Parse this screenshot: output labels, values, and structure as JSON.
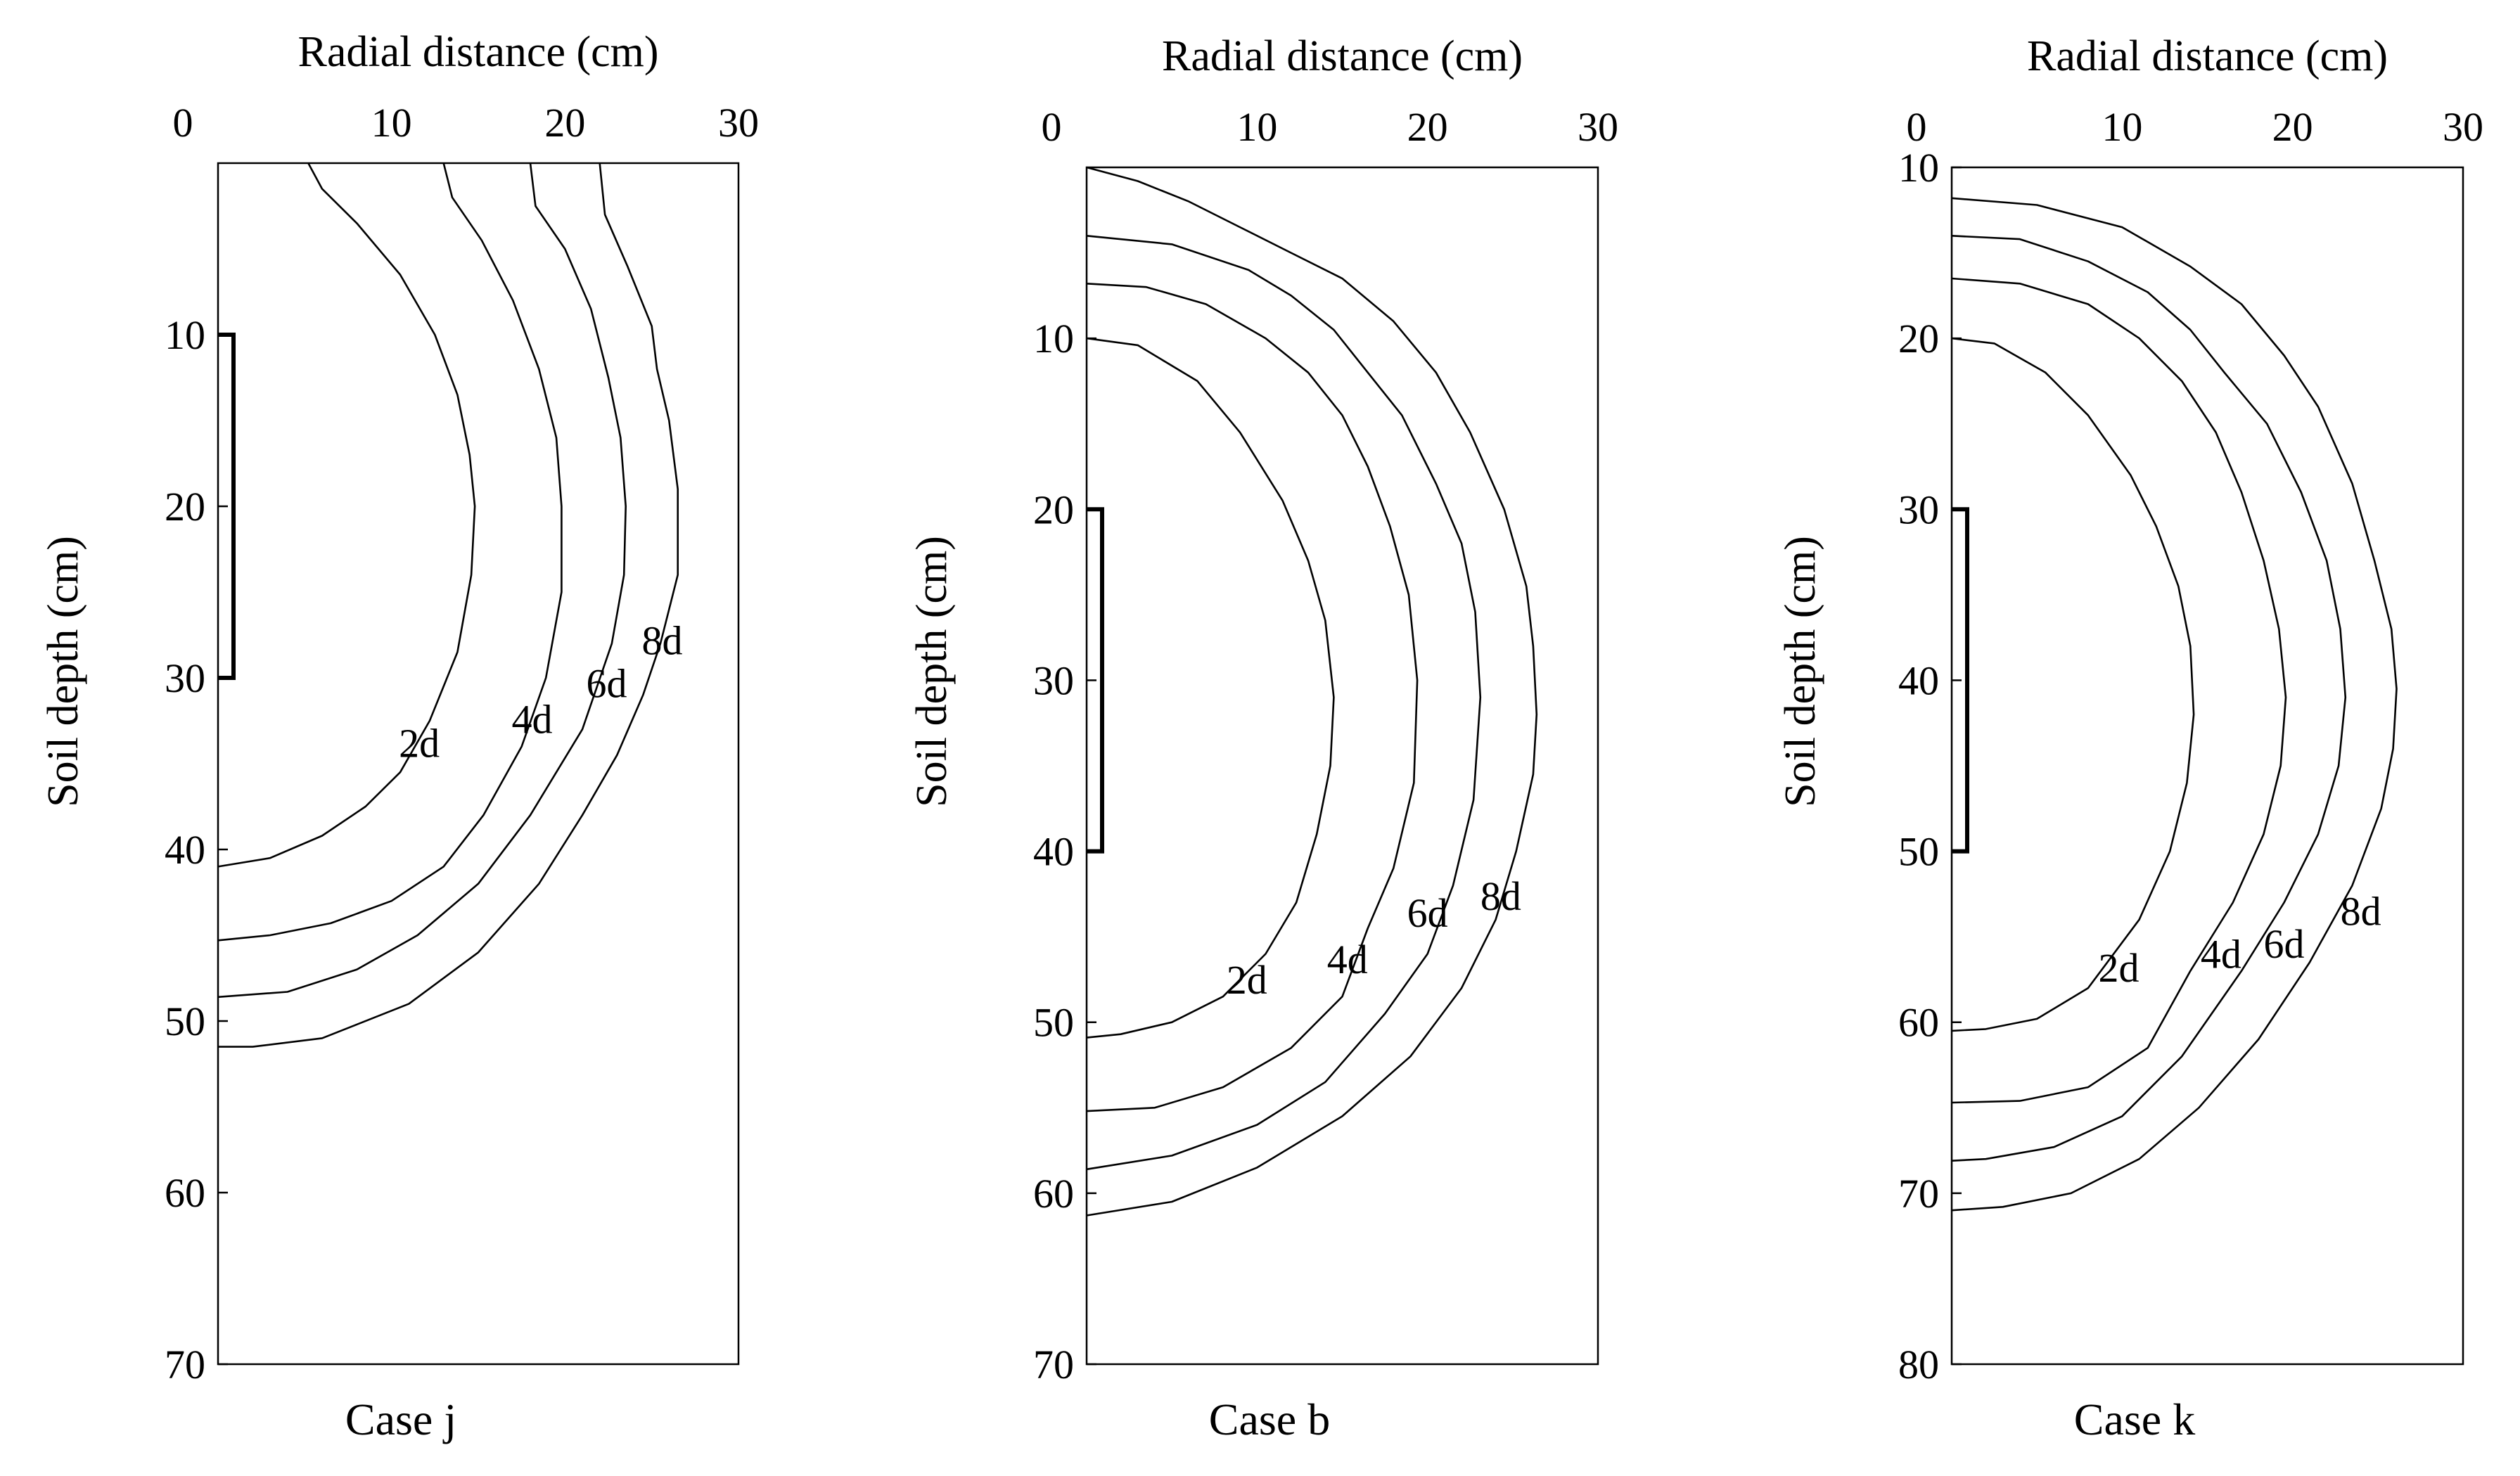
{
  "chart_data": [
    {
      "type": "contour",
      "title": "",
      "case_label": "Case j",
      "xlabel": "Radial distance (cm)",
      "ylabel": "Soil depth (cm)",
      "xlim": [
        0,
        30
      ],
      "ylim": [
        0,
        70
      ],
      "xticks": [
        0,
        10,
        20,
        30
      ],
      "yticks": [
        10,
        20,
        30,
        40,
        50,
        60,
        70
      ],
      "source": {
        "x": 0,
        "depth_top": 10,
        "depth_bottom": 30
      },
      "series": [
        {
          "name": "2d",
          "points": [
            [
              5.2,
              0
            ],
            [
              6.0,
              1.5
            ],
            [
              8.0,
              3.5
            ],
            [
              10.5,
              6.5
            ],
            [
              12.5,
              10.0
            ],
            [
              13.8,
              13.5
            ],
            [
              14.5,
              17.0
            ],
            [
              14.8,
              20.0
            ],
            [
              14.6,
              24.0
            ],
            [
              13.8,
              28.5
            ],
            [
              12.2,
              32.5
            ],
            [
              10.5,
              35.5
            ],
            [
              8.5,
              37.5
            ],
            [
              6.0,
              39.2
            ],
            [
              3.0,
              40.5
            ],
            [
              0,
              41.0
            ]
          ],
          "label_pos": [
            11.6,
            33.8
          ]
        },
        {
          "name": "4d",
          "points": [
            [
              13.0,
              0
            ],
            [
              13.5,
              2.0
            ],
            [
              15.2,
              4.5
            ],
            [
              17.0,
              8.0
            ],
            [
              18.5,
              12.0
            ],
            [
              19.5,
              16.0
            ],
            [
              19.8,
              20.0
            ],
            [
              19.8,
              25.0
            ],
            [
              18.9,
              30.0
            ],
            [
              17.5,
              34.0
            ],
            [
              15.3,
              38.0
            ],
            [
              13.0,
              41.0
            ],
            [
              10.0,
              43.0
            ],
            [
              6.5,
              44.3
            ],
            [
              3.0,
              45.0
            ],
            [
              0,
              45.3
            ]
          ],
          "label_pos": [
            18.1,
            32.4
          ]
        },
        {
          "name": "6d",
          "points": [
            [
              18.0,
              0
            ],
            [
              18.3,
              2.5
            ],
            [
              20.0,
              5.0
            ],
            [
              21.5,
              8.5
            ],
            [
              22.5,
              12.5
            ],
            [
              23.2,
              16.0
            ],
            [
              23.5,
              20.0
            ],
            [
              23.4,
              24.0
            ],
            [
              22.7,
              28.0
            ],
            [
              21.0,
              33.0
            ],
            [
              18.0,
              38.0
            ],
            [
              15.0,
              42.0
            ],
            [
              11.5,
              45.0
            ],
            [
              8.0,
              47.0
            ],
            [
              4.0,
              48.3
            ],
            [
              0,
              48.6
            ]
          ],
          "label_pos": [
            22.4,
            30.3
          ]
        },
        {
          "name": "8d",
          "points": [
            [
              22.0,
              0
            ],
            [
              22.3,
              3.0
            ],
            [
              23.6,
              6.0
            ],
            [
              25.0,
              9.5
            ],
            [
              25.3,
              12.0
            ],
            [
              26.0,
              15.0
            ],
            [
              26.5,
              19.0
            ],
            [
              26.5,
              24.0
            ],
            [
              25.5,
              28.0
            ],
            [
              24.5,
              31.0
            ],
            [
              23.0,
              34.5
            ],
            [
              21.0,
              38.0
            ],
            [
              18.5,
              42.0
            ],
            [
              15.0,
              46.0
            ],
            [
              11.0,
              49.0
            ],
            [
              6.0,
              51.0
            ],
            [
              2.0,
              51.5
            ],
            [
              0,
              51.5
            ]
          ],
          "label_pos": [
            25.6,
            27.8
          ]
        }
      ]
    },
    {
      "type": "contour",
      "title": "",
      "case_label": "Case b",
      "xlabel": "Radial distance (cm)",
      "ylabel": "Soil depth (cm)",
      "xlim": [
        0,
        30
      ],
      "ylim": [
        0,
        70
      ],
      "xticks": [
        0,
        10,
        20,
        30
      ],
      "yticks": [
        10,
        20,
        30,
        40,
        50,
        60,
        70
      ],
      "source": {
        "x": 0,
        "depth_top": 20,
        "depth_bottom": 40
      },
      "series": [
        {
          "name": "2d",
          "points": [
            [
              0,
              10.0
            ],
            [
              3.0,
              10.4
            ],
            [
              6.5,
              12.5
            ],
            [
              9.0,
              15.5
            ],
            [
              11.5,
              19.5
            ],
            [
              13.0,
              23.0
            ],
            [
              14.0,
              26.5
            ],
            [
              14.5,
              31.0
            ],
            [
              14.3,
              35.0
            ],
            [
              13.5,
              39.0
            ],
            [
              12.3,
              43.0
            ],
            [
              10.5,
              46.0
            ],
            [
              8.0,
              48.5
            ],
            [
              5.0,
              50.0
            ],
            [
              2.0,
              50.7
            ],
            [
              0,
              50.9
            ]
          ],
          "label_pos": [
            9.4,
            47.5
          ]
        },
        {
          "name": "4d",
          "points": [
            [
              0,
              6.8
            ],
            [
              3.5,
              7.0
            ],
            [
              7.0,
              8.0
            ],
            [
              10.5,
              10.0
            ],
            [
              13.0,
              12.0
            ],
            [
              15.0,
              14.5
            ],
            [
              16.5,
              17.5
            ],
            [
              17.8,
              21.0
            ],
            [
              18.9,
              25.0
            ],
            [
              19.4,
              30.0
            ],
            [
              19.2,
              36.0
            ],
            [
              18.0,
              41.0
            ],
            [
              16.5,
              44.5
            ],
            [
              15.0,
              48.5
            ],
            [
              12.0,
              51.5
            ],
            [
              8.0,
              53.8
            ],
            [
              4.0,
              55.0
            ],
            [
              0,
              55.2
            ]
          ],
          "label_pos": [
            15.3,
            46.3
          ]
        },
        {
          "name": "6d",
          "points": [
            [
              0,
              4.0
            ],
            [
              5.0,
              4.5
            ],
            [
              9.5,
              6.0
            ],
            [
              12.0,
              7.5
            ],
            [
              14.5,
              9.5
            ],
            [
              16.5,
              12.0
            ],
            [
              18.5,
              14.5
            ],
            [
              20.5,
              18.5
            ],
            [
              22.0,
              22.0
            ],
            [
              22.8,
              26.0
            ],
            [
              23.1,
              31.0
            ],
            [
              22.7,
              37.0
            ],
            [
              21.5,
              42.0
            ],
            [
              20.0,
              46.0
            ],
            [
              17.5,
              49.5
            ],
            [
              14.0,
              53.5
            ],
            [
              10.0,
              56.0
            ],
            [
              5.0,
              57.8
            ],
            [
              0,
              58.6
            ]
          ],
          "label_pos": [
            20.0,
            43.6
          ]
        },
        {
          "name": "8d",
          "points": [
            [
              0,
              0
            ],
            [
              3.0,
              0.8
            ],
            [
              6.0,
              2.0
            ],
            [
              9.0,
              3.5
            ],
            [
              12.0,
              5.0
            ],
            [
              15.0,
              6.5
            ],
            [
              18.0,
              9.0
            ],
            [
              20.5,
              12.0
            ],
            [
              22.5,
              15.5
            ],
            [
              24.5,
              20.0
            ],
            [
              25.8,
              24.5
            ],
            [
              26.2,
              28.0
            ],
            [
              26.4,
              32.0
            ],
            [
              26.2,
              35.5
            ],
            [
              25.2,
              40.0
            ],
            [
              24.0,
              44.0
            ],
            [
              22.0,
              48.0
            ],
            [
              19.0,
              52.0
            ],
            [
              15.0,
              55.5
            ],
            [
              10.0,
              58.5
            ],
            [
              5.0,
              60.5
            ],
            [
              0,
              61.3
            ]
          ],
          "label_pos": [
            24.3,
            42.6
          ]
        }
      ]
    },
    {
      "type": "contour",
      "title": "",
      "case_label": "Case k",
      "xlabel": "Radial distance (cm)",
      "ylabel": "Soil depth (cm)",
      "xlim": [
        0,
        30
      ],
      "ylim": [
        10,
        80
      ],
      "xticks": [
        0,
        10,
        20,
        30
      ],
      "yticks": [
        10,
        20,
        30,
        40,
        50,
        60,
        70,
        80
      ],
      "source": {
        "x": 0,
        "depth_top": 30,
        "depth_bottom": 50
      },
      "series": [
        {
          "name": "2d",
          "points": [
            [
              0,
              20.0
            ],
            [
              2.5,
              20.3
            ],
            [
              5.5,
              22.0
            ],
            [
              8.0,
              24.5
            ],
            [
              10.5,
              28.0
            ],
            [
              12.0,
              31.0
            ],
            [
              13.3,
              34.5
            ],
            [
              14.0,
              38.0
            ],
            [
              14.2,
              42.0
            ],
            [
              13.8,
              46.0
            ],
            [
              12.8,
              50.0
            ],
            [
              11.0,
              54.0
            ],
            [
              8.0,
              58.0
            ],
            [
              5.0,
              59.8
            ],
            [
              2.0,
              60.4
            ],
            [
              0,
              60.5
            ]
          ],
          "label_pos": [
            9.8,
            56.8
          ]
        },
        {
          "name": "4d",
          "points": [
            [
              0,
              16.5
            ],
            [
              4.0,
              16.8
            ],
            [
              8.0,
              18.0
            ],
            [
              11.0,
              20.0
            ],
            [
              13.5,
              22.5
            ],
            [
              15.5,
              25.5
            ],
            [
              17.0,
              29.0
            ],
            [
              18.3,
              33.0
            ],
            [
              19.2,
              37.0
            ],
            [
              19.6,
              41.0
            ],
            [
              19.3,
              45.0
            ],
            [
              18.3,
              49.0
            ],
            [
              16.5,
              53.0
            ],
            [
              14.0,
              57.0
            ],
            [
              11.5,
              61.5
            ],
            [
              8.0,
              63.8
            ],
            [
              4.0,
              64.6
            ],
            [
              0,
              64.7
            ]
          ],
          "label_pos": [
            15.8,
            56.0
          ]
        },
        {
          "name": "6d",
          "points": [
            [
              0,
              14.0
            ],
            [
              4.0,
              14.2
            ],
            [
              8.0,
              15.5
            ],
            [
              11.5,
              17.3
            ],
            [
              14.0,
              19.5
            ],
            [
              16.0,
              22.0
            ],
            [
              18.5,
              25.0
            ],
            [
              20.5,
              29.0
            ],
            [
              22.0,
              33.0
            ],
            [
              22.8,
              37.0
            ],
            [
              23.1,
              41.0
            ],
            [
              22.7,
              45.0
            ],
            [
              21.5,
              49.0
            ],
            [
              19.5,
              53.0
            ],
            [
              17.0,
              57.0
            ],
            [
              13.5,
              62.0
            ],
            [
              10.0,
              65.5
            ],
            [
              6.0,
              67.3
            ],
            [
              2.0,
              68.0
            ],
            [
              0,
              68.1
            ]
          ],
          "label_pos": [
            19.5,
            55.4
          ]
        },
        {
          "name": "8d",
          "points": [
            [
              0,
              11.8
            ],
            [
              5.0,
              12.2
            ],
            [
              10.0,
              13.5
            ],
            [
              14.0,
              15.8
            ],
            [
              17.0,
              18.0
            ],
            [
              19.5,
              21.0
            ],
            [
              21.5,
              24.0
            ],
            [
              23.5,
              28.5
            ],
            [
              24.8,
              33.0
            ],
            [
              25.8,
              37.0
            ],
            [
              26.1,
              40.5
            ],
            [
              25.9,
              44.0
            ],
            [
              25.2,
              47.5
            ],
            [
              23.5,
              52.0
            ],
            [
              21.0,
              56.5
            ],
            [
              18.0,
              61.0
            ],
            [
              14.5,
              65.0
            ],
            [
              11.0,
              68.0
            ],
            [
              7.0,
              70.0
            ],
            [
              3.0,
              70.8
            ],
            [
              0,
              71.0
            ]
          ],
          "label_pos": [
            24.0,
            53.5
          ]
        }
      ]
    }
  ]
}
